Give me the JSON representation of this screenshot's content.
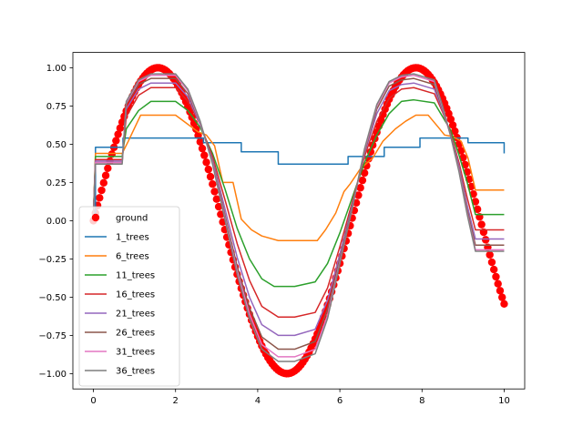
{
  "chart_data": {
    "type": "line",
    "title": "",
    "xlabel": "",
    "ylabel": "",
    "xlim": [
      -0.5,
      10.5
    ],
    "ylim": [
      -1.1,
      1.1
    ],
    "x_ticks": [
      0,
      2,
      4,
      6,
      8,
      10
    ],
    "y_ticks": [
      -1.0,
      -0.75,
      -0.5,
      -0.25,
      0.0,
      0.25,
      0.5,
      0.75,
      1.0
    ],
    "x_tick_labels": [
      "0",
      "2",
      "4",
      "6",
      "8",
      "10"
    ],
    "y_tick_labels": [
      "−1.00",
      "−0.75",
      "−0.50",
      "−0.25",
      "0.00",
      "0.25",
      "0.50",
      "0.75",
      "1.00"
    ],
    "grid": false,
    "legend_position": "lower-left",
    "series": [
      {
        "name": "ground",
        "style": "markers",
        "color": "#ff0000",
        "function": "sin(x)",
        "x_range": [
          0,
          10
        ],
        "n_points": 201
      },
      {
        "name": "1_trees",
        "style": "step",
        "color": "#1f77b4",
        "x": [
          0,
          0.05,
          0.72,
          2.0,
          2.68,
          3.6,
          4.5,
          5.48,
          6.2,
          7.08,
          7.95,
          8.8,
          9.12,
          10
        ],
        "values": [
          0.04,
          0.48,
          0.54,
          0.54,
          0.51,
          0.45,
          0.37,
          0.37,
          0.42,
          0.48,
          0.54,
          0.54,
          0.51,
          0.44
        ]
      },
      {
        "name": "6_trees",
        "style": "line",
        "color": "#ff7f0e",
        "x": [
          0,
          0.05,
          0.7,
          0.85,
          1.15,
          2.0,
          2.15,
          2.55,
          2.75,
          2.95,
          3.15,
          3.4,
          3.6,
          3.85,
          4.1,
          4.5,
          5.0,
          5.45,
          5.65,
          5.9,
          6.1,
          6.25,
          6.5,
          6.8,
          7.05,
          7.35,
          7.6,
          7.85,
          8.15,
          8.4,
          8.55,
          8.75,
          8.95,
          9.12,
          9.3,
          9.5,
          10
        ],
        "values": [
          0.04,
          0.44,
          0.44,
          0.52,
          0.69,
          0.69,
          0.66,
          0.58,
          0.56,
          0.49,
          0.25,
          0.25,
          0.01,
          -0.06,
          -0.1,
          -0.13,
          -0.13,
          -0.13,
          -0.06,
          0.05,
          0.19,
          0.24,
          0.34,
          0.41,
          0.52,
          0.6,
          0.65,
          0.69,
          0.69,
          0.61,
          0.56,
          0.55,
          0.52,
          0.41,
          0.2,
          0.2,
          0.2
        ]
      },
      {
        "name": "11_trees",
        "style": "line",
        "color": "#2ca02c",
        "x": [
          0,
          0.05,
          0.7,
          0.8,
          1.1,
          1.4,
          2.0,
          2.3,
          2.6,
          2.9,
          3.2,
          3.5,
          3.8,
          4.1,
          4.4,
          4.9,
          5.4,
          5.7,
          6.0,
          6.3,
          6.6,
          6.9,
          7.2,
          7.5,
          7.8,
          8.3,
          8.5,
          8.7,
          8.9,
          9.1,
          9.3,
          9.5,
          10
        ],
        "values": [
          0.04,
          0.42,
          0.42,
          0.6,
          0.72,
          0.78,
          0.78,
          0.72,
          0.61,
          0.44,
          0.21,
          -0.05,
          -0.25,
          -0.38,
          -0.43,
          -0.43,
          -0.4,
          -0.28,
          -0.08,
          0.15,
          0.38,
          0.56,
          0.7,
          0.78,
          0.79,
          0.77,
          0.68,
          0.59,
          0.43,
          0.25,
          0.04,
          0.04,
          0.04
        ]
      },
      {
        "name": "16_trees",
        "style": "line",
        "color": "#d62728",
        "x": [
          0,
          0.05,
          0.7,
          0.8,
          1.1,
          1.4,
          2.0,
          2.3,
          2.6,
          2.9,
          3.2,
          3.5,
          3.8,
          4.1,
          4.5,
          4.9,
          5.4,
          5.7,
          6.0,
          6.3,
          6.6,
          6.9,
          7.2,
          7.5,
          7.8,
          8.3,
          8.5,
          8.7,
          8.9,
          9.1,
          9.3,
          9.5,
          10
        ],
        "values": [
          0.04,
          0.4,
          0.4,
          0.68,
          0.82,
          0.87,
          0.87,
          0.78,
          0.63,
          0.42,
          0.14,
          -0.15,
          -0.39,
          -0.56,
          -0.63,
          -0.63,
          -0.6,
          -0.44,
          -0.17,
          0.12,
          0.42,
          0.65,
          0.8,
          0.86,
          0.87,
          0.83,
          0.71,
          0.57,
          0.38,
          0.15,
          -0.06,
          -0.06,
          -0.06
        ]
      },
      {
        "name": "21_trees",
        "style": "line",
        "color": "#9467bd",
        "x": [
          0,
          0.05,
          0.7,
          0.8,
          1.1,
          1.4,
          2.0,
          2.3,
          2.6,
          2.9,
          3.2,
          3.5,
          3.8,
          4.1,
          4.5,
          4.9,
          5.4,
          5.7,
          6.0,
          6.3,
          6.6,
          6.9,
          7.2,
          7.5,
          7.8,
          8.3,
          8.5,
          8.7,
          8.9,
          9.1,
          9.3,
          9.5,
          10
        ],
        "values": [
          0.04,
          0.39,
          0.39,
          0.73,
          0.86,
          0.9,
          0.9,
          0.81,
          0.63,
          0.4,
          0.08,
          -0.24,
          -0.5,
          -0.68,
          -0.75,
          -0.75,
          -0.71,
          -0.52,
          -0.22,
          0.1,
          0.44,
          0.7,
          0.85,
          0.89,
          0.9,
          0.86,
          0.72,
          0.56,
          0.36,
          0.1,
          -0.12,
          -0.12,
          -0.12
        ]
      },
      {
        "name": "26_trees",
        "style": "line",
        "color": "#8c564b",
        "x": [
          0,
          0.05,
          0.7,
          0.8,
          1.1,
          1.4,
          2.0,
          2.3,
          2.6,
          2.9,
          3.2,
          3.5,
          3.8,
          4.1,
          4.5,
          4.9,
          5.4,
          5.7,
          6.0,
          6.3,
          6.6,
          6.9,
          7.2,
          7.5,
          7.8,
          8.3,
          8.5,
          8.7,
          8.9,
          9.1,
          9.3,
          9.5,
          10
        ],
        "values": [
          0.04,
          0.38,
          0.38,
          0.76,
          0.89,
          0.93,
          0.93,
          0.83,
          0.64,
          0.39,
          0.04,
          -0.3,
          -0.57,
          -0.76,
          -0.84,
          -0.84,
          -0.79,
          -0.58,
          -0.25,
          0.09,
          0.45,
          0.73,
          0.88,
          0.92,
          0.93,
          0.89,
          0.73,
          0.56,
          0.34,
          0.07,
          -0.16,
          -0.16,
          -0.16
        ]
      },
      {
        "name": "31_trees",
        "style": "line",
        "color": "#e377c2",
        "x": [
          0,
          0.05,
          0.7,
          0.8,
          1.1,
          1.4,
          2.0,
          2.3,
          2.6,
          2.9,
          3.2,
          3.5,
          3.8,
          4.1,
          4.5,
          4.9,
          5.4,
          5.7,
          6.0,
          6.3,
          6.6,
          6.9,
          7.2,
          7.5,
          7.8,
          8.3,
          8.5,
          8.7,
          8.9,
          9.1,
          9.3,
          9.5,
          10
        ],
        "values": [
          0.04,
          0.38,
          0.38,
          0.77,
          0.91,
          0.95,
          0.95,
          0.85,
          0.64,
          0.38,
          0.02,
          -0.33,
          -0.61,
          -0.81,
          -0.89,
          -0.89,
          -0.84,
          -0.62,
          -0.27,
          0.08,
          0.46,
          0.75,
          0.9,
          0.94,
          0.95,
          0.91,
          0.74,
          0.55,
          0.33,
          0.05,
          -0.19,
          -0.19,
          -0.19
        ]
      },
      {
        "name": "36_trees",
        "style": "line",
        "color": "#7f7f7f",
        "x": [
          0,
          0.05,
          0.7,
          0.8,
          1.1,
          1.4,
          2.0,
          2.3,
          2.6,
          2.9,
          3.2,
          3.5,
          3.8,
          4.1,
          4.5,
          4.9,
          5.4,
          5.7,
          6.0,
          6.3,
          6.6,
          6.9,
          7.2,
          7.5,
          7.8,
          8.3,
          8.5,
          8.7,
          8.9,
          9.1,
          9.3,
          9.5,
          10
        ],
        "values": [
          0.04,
          0.37,
          0.37,
          0.78,
          0.92,
          0.96,
          0.96,
          0.86,
          0.65,
          0.37,
          0.01,
          -0.35,
          -0.64,
          -0.84,
          -0.92,
          -0.92,
          -0.87,
          -0.64,
          -0.28,
          0.08,
          0.47,
          0.76,
          0.91,
          0.95,
          0.96,
          0.92,
          0.75,
          0.55,
          0.32,
          0.04,
          -0.2,
          -0.2,
          -0.2
        ]
      }
    ]
  }
}
